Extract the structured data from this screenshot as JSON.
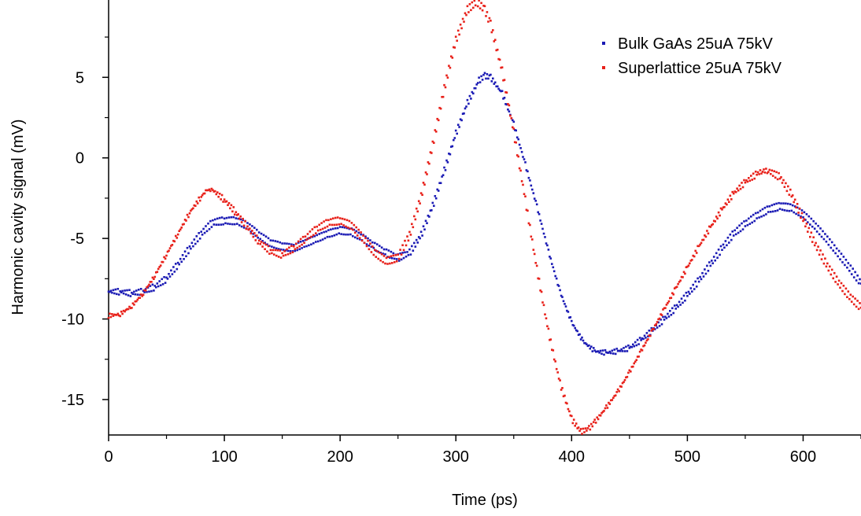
{
  "chart_data": {
    "type": "scatter",
    "title": "",
    "xlabel": "Time (ps)",
    "ylabel": "Harmonic cavity signal (mV)",
    "xlim": [
      0,
      650
    ],
    "ylim": [
      -17.2,
      9.8
    ],
    "x_ticks": [
      0,
      100,
      200,
      300,
      400,
      500,
      600
    ],
    "y_ticks": [
      -15,
      -10,
      -5,
      0,
      5
    ],
    "x_tick_labels": [
      "0",
      "100",
      "200",
      "300",
      "400",
      "500",
      "600"
    ],
    "y_tick_labels": [
      "-15",
      "-10",
      "-5",
      "0",
      "5"
    ],
    "grid": false,
    "legend_position": "top-right",
    "series": [
      {
        "name": "Bulk GaAs 25uA 75kV",
        "color": "#1a1ab4",
        "points": [
          [
            0,
            -8.3
          ],
          [
            10,
            -8.3
          ],
          [
            20,
            -8.4
          ],
          [
            30,
            -8.3
          ],
          [
            40,
            -8.0
          ],
          [
            50,
            -7.5
          ],
          [
            60,
            -6.6
          ],
          [
            70,
            -5.6
          ],
          [
            80,
            -4.7
          ],
          [
            90,
            -4.0
          ],
          [
            100,
            -3.9
          ],
          [
            110,
            -3.9
          ],
          [
            120,
            -4.2
          ],
          [
            130,
            -4.8
          ],
          [
            140,
            -5.3
          ],
          [
            150,
            -5.5
          ],
          [
            160,
            -5.6
          ],
          [
            170,
            -5.3
          ],
          [
            180,
            -5.0
          ],
          [
            190,
            -4.7
          ],
          [
            200,
            -4.5
          ],
          [
            210,
            -4.6
          ],
          [
            220,
            -5.0
          ],
          [
            230,
            -5.5
          ],
          [
            240,
            -5.9
          ],
          [
            250,
            -6.2
          ],
          [
            260,
            -5.9
          ],
          [
            270,
            -4.8
          ],
          [
            280,
            -3.0
          ],
          [
            290,
            -0.8
          ],
          [
            300,
            1.5
          ],
          [
            310,
            3.4
          ],
          [
            320,
            4.8
          ],
          [
            325,
            5.1
          ],
          [
            330,
            5.0
          ],
          [
            340,
            4.0
          ],
          [
            350,
            2.1
          ],
          [
            360,
            -0.4
          ],
          [
            370,
            -3.0
          ],
          [
            380,
            -5.8
          ],
          [
            390,
            -8.3
          ],
          [
            400,
            -10.2
          ],
          [
            410,
            -11.4
          ],
          [
            420,
            -12.0
          ],
          [
            430,
            -12.1
          ],
          [
            440,
            -12.0
          ],
          [
            450,
            -11.8
          ],
          [
            460,
            -11.3
          ],
          [
            470,
            -10.7
          ],
          [
            480,
            -10.0
          ],
          [
            490,
            -9.3
          ],
          [
            500,
            -8.5
          ],
          [
            510,
            -7.6
          ],
          [
            520,
            -6.6
          ],
          [
            530,
            -5.6
          ],
          [
            540,
            -4.7
          ],
          [
            550,
            -4.1
          ],
          [
            560,
            -3.6
          ],
          [
            570,
            -3.2
          ],
          [
            580,
            -3.0
          ],
          [
            590,
            -3.1
          ],
          [
            600,
            -3.5
          ],
          [
            610,
            -4.2
          ],
          [
            620,
            -5.0
          ],
          [
            630,
            -5.9
          ],
          [
            640,
            -6.8
          ],
          [
            650,
            -7.8
          ]
        ]
      },
      {
        "name": "Superlattice 25uA 75kV",
        "color": "#e8211a",
        "points": [
          [
            0,
            -9.8
          ],
          [
            10,
            -9.7
          ],
          [
            20,
            -9.2
          ],
          [
            30,
            -8.4
          ],
          [
            40,
            -7.3
          ],
          [
            50,
            -6.0
          ],
          [
            60,
            -4.7
          ],
          [
            70,
            -3.4
          ],
          [
            80,
            -2.4
          ],
          [
            85,
            -2.0
          ],
          [
            90,
            -2.0
          ],
          [
            100,
            -2.6
          ],
          [
            110,
            -3.4
          ],
          [
            120,
            -4.3
          ],
          [
            130,
            -5.2
          ],
          [
            140,
            -5.8
          ],
          [
            150,
            -6.0
          ],
          [
            160,
            -5.6
          ],
          [
            170,
            -5.0
          ],
          [
            180,
            -4.4
          ],
          [
            190,
            -4.0
          ],
          [
            200,
            -3.9
          ],
          [
            210,
            -4.2
          ],
          [
            220,
            -5.0
          ],
          [
            230,
            -5.9
          ],
          [
            240,
            -6.4
          ],
          [
            250,
            -6.2
          ],
          [
            260,
            -4.8
          ],
          [
            270,
            -2.4
          ],
          [
            280,
            0.8
          ],
          [
            290,
            4.3
          ],
          [
            300,
            7.3
          ],
          [
            310,
            9.2
          ],
          [
            318,
            9.7
          ],
          [
            325,
            9.2
          ],
          [
            330,
            8.3
          ],
          [
            340,
            5.4
          ],
          [
            350,
            1.6
          ],
          [
            360,
            -2.6
          ],
          [
            370,
            -6.9
          ],
          [
            380,
            -10.8
          ],
          [
            390,
            -14.0
          ],
          [
            400,
            -16.2
          ],
          [
            408,
            -17.0
          ],
          [
            415,
            -16.8
          ],
          [
            420,
            -16.4
          ],
          [
            430,
            -15.5
          ],
          [
            440,
            -14.5
          ],
          [
            450,
            -13.3
          ],
          [
            460,
            -12.0
          ],
          [
            470,
            -10.7
          ],
          [
            480,
            -9.4
          ],
          [
            490,
            -8.1
          ],
          [
            500,
            -6.8
          ],
          [
            510,
            -5.5
          ],
          [
            520,
            -4.3
          ],
          [
            530,
            -3.2
          ],
          [
            540,
            -2.2
          ],
          [
            550,
            -1.5
          ],
          [
            560,
            -1.0
          ],
          [
            565,
            -0.8
          ],
          [
            570,
            -0.8
          ],
          [
            580,
            -1.2
          ],
          [
            590,
            -2.3
          ],
          [
            600,
            -3.8
          ],
          [
            610,
            -5.3
          ],
          [
            620,
            -6.6
          ],
          [
            630,
            -7.7
          ],
          [
            640,
            -8.6
          ],
          [
            650,
            -9.3
          ]
        ]
      }
    ]
  }
}
